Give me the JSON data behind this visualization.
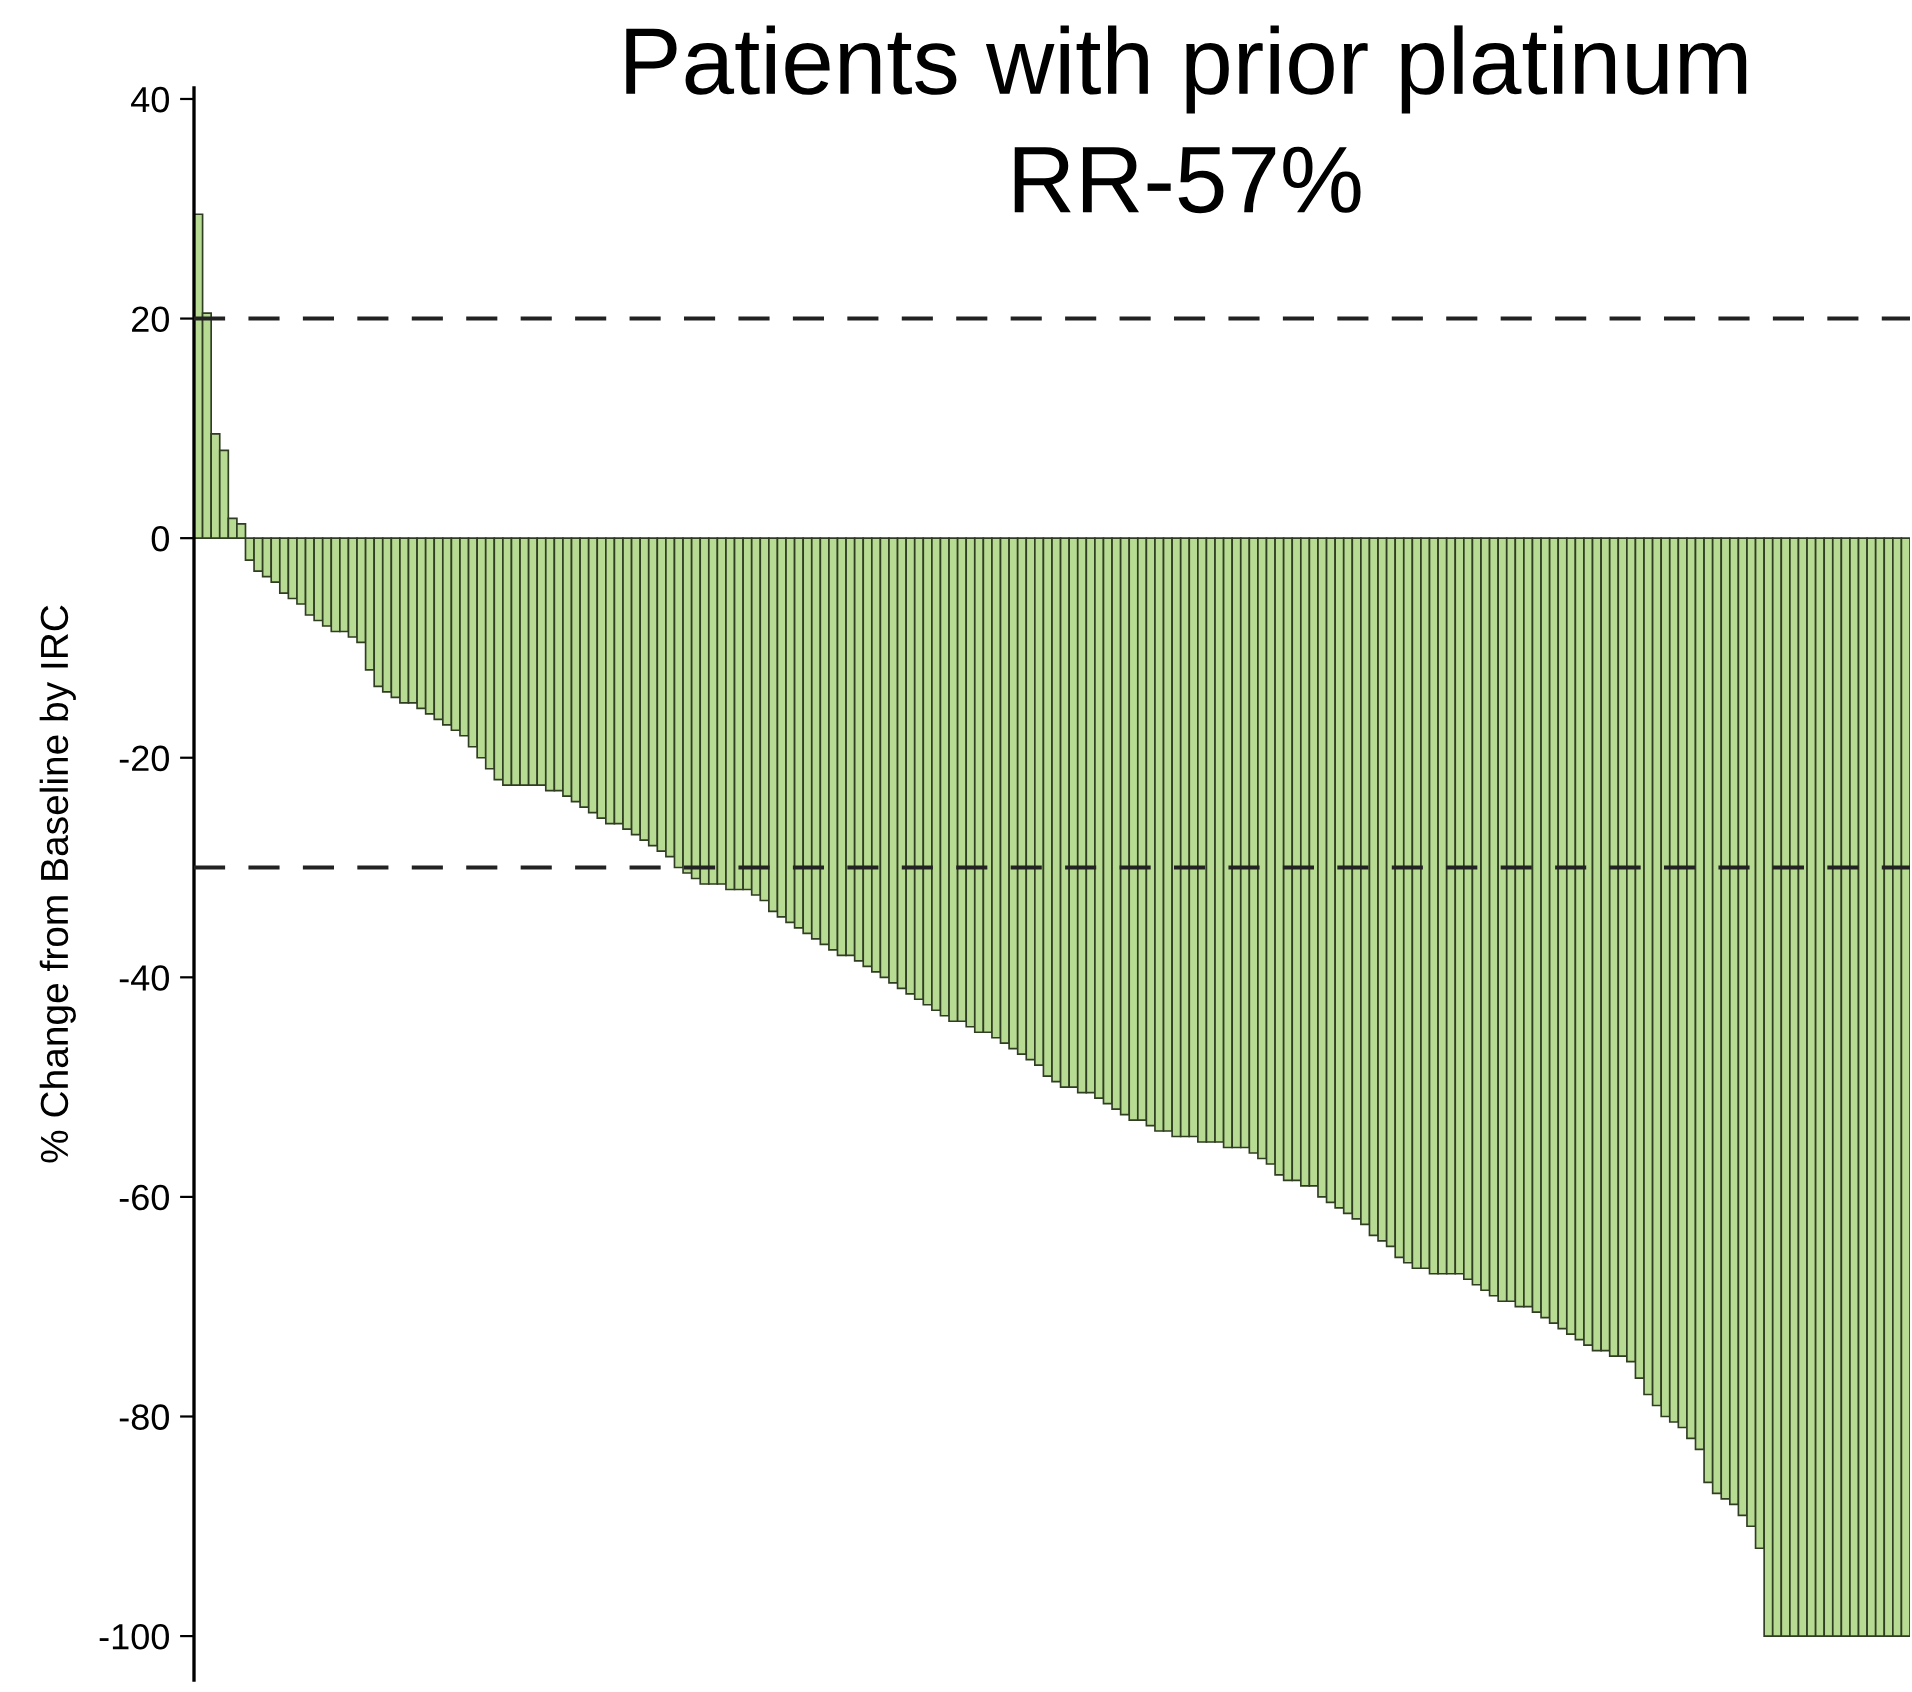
{
  "chart_data": {
    "type": "bar",
    "title": "Patients with prior platinum",
    "subtitle": "RR-57%",
    "ylabel": "% Change from Baseline by IRC",
    "categories": [
      null,
      null,
      null,
      null,
      null,
      null,
      null,
      null,
      null,
      null,
      null,
      null,
      null,
      null,
      null,
      null,
      null,
      null,
      null,
      null,
      null,
      null,
      null,
      null,
      null,
      null,
      null,
      null,
      null,
      null,
      null,
      null,
      null,
      null,
      null,
      null,
      null,
      null,
      null,
      null,
      null,
      null,
      null,
      null,
      null,
      null,
      null,
      null,
      null,
      null,
      null,
      null,
      null,
      null,
      null,
      null,
      null,
      null,
      null,
      null,
      null,
      null,
      null,
      null,
      null,
      null,
      null,
      null,
      null,
      null,
      null,
      null,
      null,
      null,
      null,
      null,
      null,
      null,
      null,
      null,
      null,
      null,
      null,
      null,
      null,
      null,
      null,
      null,
      null,
      null,
      null,
      null,
      null,
      null,
      null,
      null,
      null,
      null,
      null,
      null,
      null,
      null,
      null,
      null,
      null,
      null,
      null,
      null,
      null,
      null,
      null,
      null,
      null,
      null,
      null,
      null,
      null,
      null,
      null,
      null,
      null,
      null,
      null,
      null,
      null,
      null,
      null,
      null,
      null,
      null,
      null,
      null,
      null,
      null,
      null,
      null,
      null,
      null,
      null,
      null,
      null,
      null,
      null,
      null,
      null,
      null,
      null,
      null,
      null,
      null,
      null,
      null,
      null,
      null,
      null,
      null,
      null,
      null,
      null,
      null,
      null,
      null,
      null,
      null,
      null,
      null,
      null,
      null,
      null,
      null,
      null,
      null,
      null,
      null,
      null,
      null,
      null,
      null,
      null,
      null,
      null,
      null,
      null,
      null,
      null,
      null,
      null,
      null,
      null,
      null,
      null,
      null,
      null,
      null,
      null,
      null,
      null,
      null,
      null,
      null
    ],
    "values": [
      29.5,
      20.5,
      9.5,
      8,
      1.8,
      1.3,
      -2,
      -3,
      -3.5,
      -4,
      -5,
      -5.5,
      -6,
      -7,
      -7.5,
      -8,
      -8.5,
      -8.5,
      -9,
      -9.5,
      -12,
      -13.5,
      -14,
      -14.5,
      -15,
      -15,
      -15.5,
      -16,
      -16.5,
      -17,
      -17.5,
      -18,
      -19,
      -20,
      -21,
      -22,
      -22.5,
      -22.5,
      -22.5,
      -22.5,
      -22.5,
      -23,
      -23,
      -23.5,
      -24,
      -24.5,
      -25,
      -25.5,
      -26,
      -26,
      -26.5,
      -27,
      -27.5,
      -28,
      -28.5,
      -29,
      -30,
      -30.5,
      -31,
      -31.5,
      -31.5,
      -31.5,
      -32,
      -32,
      -32,
      -32.5,
      -33,
      -34,
      -34.5,
      -35,
      -35.5,
      -36,
      -36.5,
      -37,
      -37.5,
      -38,
      -38,
      -38.5,
      -39,
      -39.5,
      -40,
      -40.5,
      -41,
      -41.5,
      -42,
      -42.5,
      -43,
      -43.5,
      -44,
      -44,
      -44.5,
      -45,
      -45,
      -45.5,
      -46,
      -46.5,
      -47,
      -47.5,
      -48,
      -49,
      -49.5,
      -50,
      -50,
      -50.5,
      -50.5,
      -51,
      -51.5,
      -52,
      -52.5,
      -53,
      -53,
      -53.5,
      -54,
      -54,
      -54.5,
      -54.5,
      -54.5,
      -55,
      -55,
      -55,
      -55.5,
      -55.5,
      -55.5,
      -56,
      -56.5,
      -57,
      -58,
      -58.5,
      -58.5,
      -59,
      -59,
      -60,
      -60.5,
      -61,
      -61.5,
      -62,
      -62.5,
      -63.5,
      -64,
      -64.5,
      -65.5,
      -66,
      -66.5,
      -66.5,
      -67,
      -67,
      -67,
      -67,
      -67.5,
      -68,
      -68.5,
      -69,
      -69.5,
      -69.5,
      -70,
      -70,
      -70.5,
      -71,
      -71.5,
      -72,
      -72.5,
      -73,
      -73.5,
      -74,
      -74,
      -74.5,
      -74.5,
      -75,
      -76.5,
      -78,
      -79,
      -80,
      -80.5,
      -81,
      -82,
      -83,
      -86,
      -87,
      -87.5,
      -88,
      -89,
      -90,
      -92,
      -100,
      -100,
      -100,
      -100,
      -100,
      -100,
      -100,
      -100,
      -100,
      -100,
      -100,
      -100,
      -100,
      -100,
      -100,
      -100,
      -100
    ],
    "color": "#b8db93",
    "ylim": [
      -104,
      41
    ],
    "yticks": [
      40,
      20,
      0,
      -20,
      -40,
      -60,
      -80,
      -100
    ],
    "ref_lines": [
      {
        "axis": "y",
        "value": 20,
        "line_style": "dashed",
        "color": "#222222"
      },
      {
        "axis": "y",
        "value": -30,
        "line_style": "dashed",
        "color": "#222222"
      }
    ],
    "tick_labels": "y",
    "grid": false,
    "legend": false
  }
}
